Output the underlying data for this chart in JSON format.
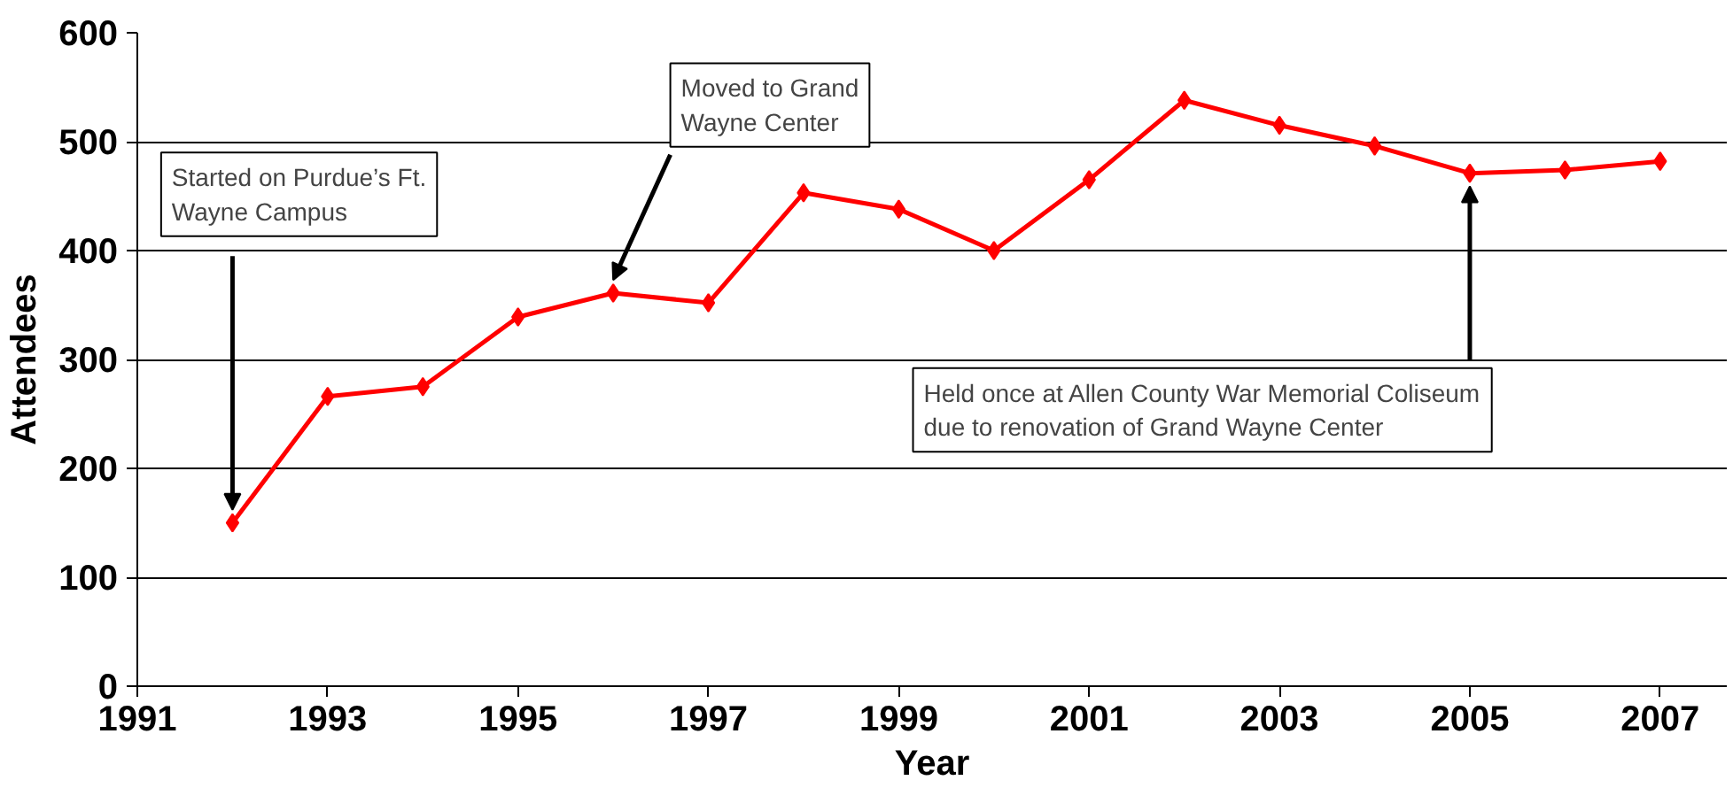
{
  "chart_data": {
    "type": "line",
    "xlabel": "Year",
    "ylabel": "Attendees",
    "x": [
      1992,
      1993,
      1994,
      1995,
      1996,
      1997,
      1998,
      1999,
      2000,
      2001,
      2002,
      2003,
      2004,
      2005,
      2006,
      2007
    ],
    "series": [
      {
        "color": "#ff0000",
        "values": [
          150,
          266,
          275,
          339,
          361,
          352,
          453,
          438,
          400,
          465,
          538,
          515,
          496,
          471,
          474,
          482
        ]
      }
    ],
    "xlim": [
      1991,
      2007.7
    ],
    "xticks": [
      1991,
      1993,
      1995,
      1997,
      1999,
      2001,
      2003,
      2005,
      2007
    ],
    "ylim": [
      0,
      600
    ],
    "yticks": [
      0,
      100,
      200,
      300,
      400,
      500,
      600
    ],
    "grid": "y",
    "marker": "diamond",
    "line_style": "solid",
    "annotations": [
      {
        "text": "Started on Purdue’s Ft.\nWayne Campus",
        "x": 1992,
        "y": 150
      },
      {
        "text": "Moved to Grand\nWayne Center",
        "x": 1996,
        "y": 361
      },
      {
        "text": "Held once at Allen County War Memorial Coliseum\ndue to renovation of Grand Wayne Center",
        "x": 2005,
        "y": 471
      }
    ]
  }
}
